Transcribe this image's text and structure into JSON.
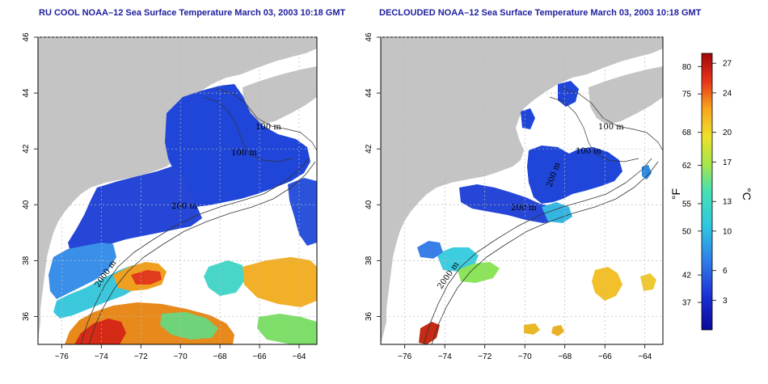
{
  "panels": {
    "left_title": "RU COOL NOAA–12 Sea Surface Temperature March 03, 2003 10:18 GMT",
    "right_title": "DECLOUDED NOAA–12 Sea Surface Temperature March 03, 2003 10:18 GMT"
  },
  "axes": {
    "x_ticks": [
      "−76",
      "−74",
      "−72",
      "−70",
      "−68",
      "−66",
      "−64"
    ],
    "y_ticks": [
      "36",
      "38",
      "40",
      "42",
      "44",
      "46"
    ]
  },
  "contour_labels": {
    "left": [
      "100 m",
      "100 m",
      "200 m",
      "2000 m"
    ],
    "right": [
      "100 m",
      "100 m",
      "200 m",
      "200 m",
      "2000 m"
    ]
  },
  "colorbar": {
    "fahrenheit_ticks": [
      "80",
      "75",
      "68",
      "62",
      "55",
      "50",
      "42",
      "37"
    ],
    "celsius_ticks": [
      "27",
      "24",
      "20",
      "17",
      "13",
      "10",
      "6",
      "3"
    ],
    "fahrenheit_unit": "°F",
    "celsius_unit": "°C"
  },
  "colors": {
    "land": "#c4c4c4",
    "ocean_bg": "#ffffff",
    "grid": "#b9b9b9",
    "title": "#1d1d9e"
  }
}
